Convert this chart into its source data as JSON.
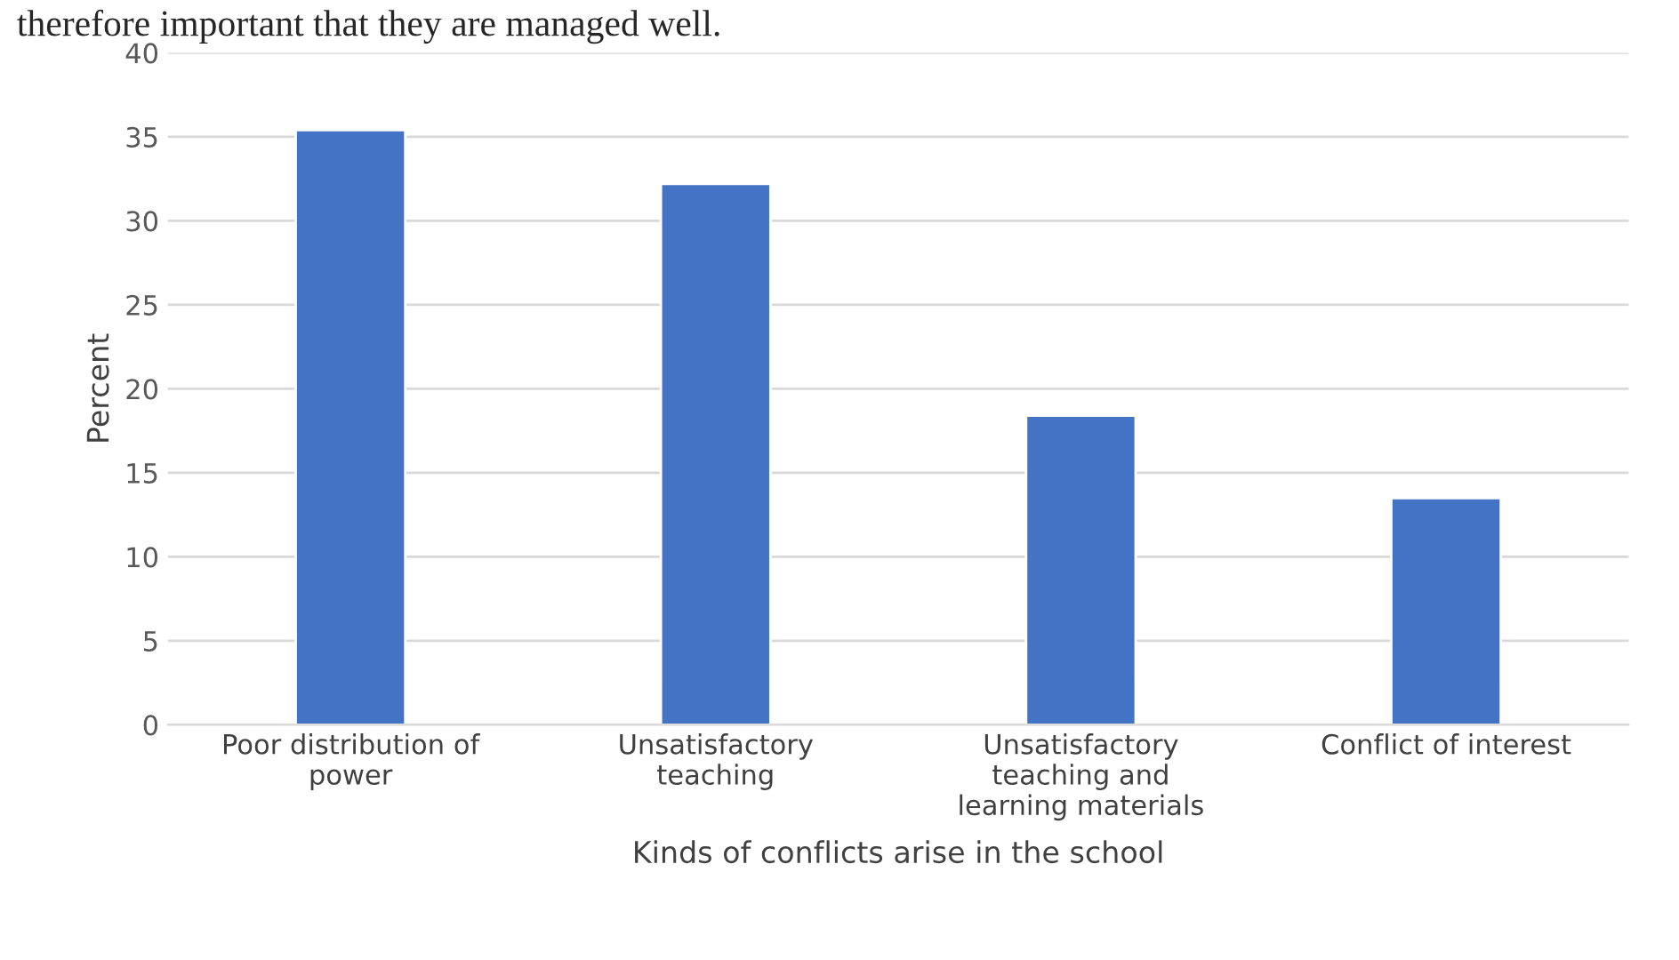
{
  "chart_data": {
    "type": "bar",
    "xlabel": "Kinds of conflicts arise in the school",
    "ylabel": "Percent",
    "categories": [
      "Poor distribution of\npower",
      "Unsatisfactory\nteaching",
      "Unsatisfactory\nteaching and\nlearning materials",
      "Conflict of interest"
    ],
    "values": [
      35.4,
      32.2,
      18.4,
      13.5
    ],
    "color": "#4472c4",
    "ylim": [
      0,
      40
    ],
    "yticks": [
      0,
      5,
      10,
      15,
      20,
      25,
      30,
      35,
      40
    ],
    "grid": "y",
    "annotations": [
      "therefore important that they are managed well."
    ]
  }
}
